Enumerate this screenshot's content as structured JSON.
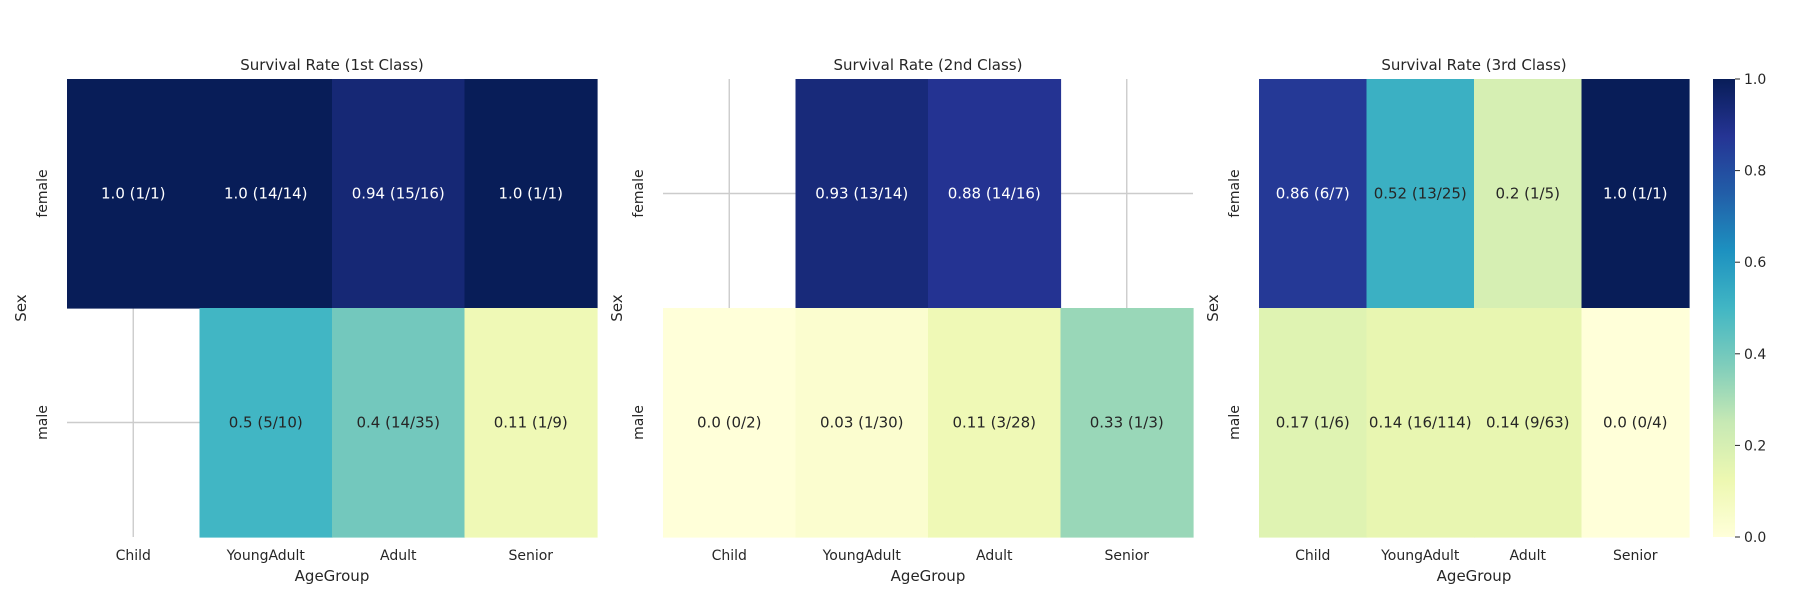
{
  "chart_data": [
    {
      "type": "heatmap",
      "title": "Survival Rate (1st Class)",
      "xlabel": "AgeGroup",
      "ylabel": "Sex",
      "x_categories": [
        "Child",
        "YoungAdult",
        "Adult",
        "Senior"
      ],
      "y_categories": [
        "female",
        "male"
      ],
      "values": [
        [
          1.0,
          1.0,
          0.94,
          1.0
        ],
        [
          null,
          0.5,
          0.4,
          0.11
        ]
      ],
      "annotations": [
        [
          "1.0 (1/1)",
          "1.0 (14/14)",
          "0.94 (15/16)",
          "1.0 (1/1)"
        ],
        [
          "",
          "0.5 (5/10)",
          "0.4 (14/35)",
          "0.11 (1/9)"
        ]
      ],
      "grid": true
    },
    {
      "type": "heatmap",
      "title": "Survival Rate (2nd Class)",
      "xlabel": "AgeGroup",
      "ylabel": "Sex",
      "x_categories": [
        "Child",
        "YoungAdult",
        "Adult",
        "Senior"
      ],
      "y_categories": [
        "female",
        "male"
      ],
      "values": [
        [
          null,
          0.93,
          0.88,
          null
        ],
        [
          0.0,
          0.03,
          0.11,
          0.33
        ]
      ],
      "annotations": [
        [
          "",
          "0.93 (13/14)",
          "0.88 (14/16)",
          ""
        ],
        [
          "0.0 (0/2)",
          "0.03 (1/30)",
          "0.11 (3/28)",
          "0.33 (1/3)"
        ]
      ],
      "grid": true
    },
    {
      "type": "heatmap",
      "title": "Survival Rate (3rd Class)",
      "xlabel": "AgeGroup",
      "ylabel": "Sex",
      "x_categories": [
        "Child",
        "YoungAdult",
        "Adult",
        "Senior"
      ],
      "y_categories": [
        "female",
        "male"
      ],
      "values": [
        [
          0.86,
          0.52,
          0.2,
          1.0
        ],
        [
          0.17,
          0.14,
          0.14,
          0.0
        ]
      ],
      "annotations": [
        [
          "0.86 (6/7)",
          "0.52 (13/25)",
          "0.2 (1/5)",
          "1.0 (1/1)"
        ],
        [
          "0.17 (1/6)",
          "0.14 (16/114)",
          "0.14 (9/63)",
          "0.0 (0/4)"
        ]
      ],
      "grid": true
    }
  ],
  "colorbar": {
    "colormap": "YlGnBu",
    "range": [
      0.0,
      1.0
    ],
    "ticks": [
      "0.0",
      "0.2",
      "0.4",
      "0.6",
      "0.8",
      "1.0"
    ]
  }
}
